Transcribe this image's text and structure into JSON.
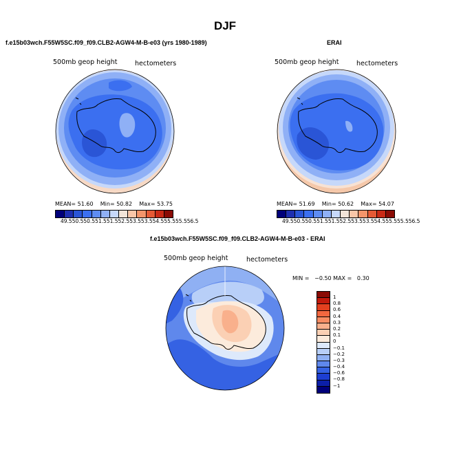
{
  "page": {
    "title": "DJF"
  },
  "panels": [
    {
      "title": "f.e15b03wch.F55W5SC.f09_f09.CLB2-AGW4-M-B-e03 (yrs 1980-1989)",
      "variable": "500mb geop height",
      "units": "hectometers",
      "stats": {
        "mean_label": "MEAN=",
        "mean": "51.60",
        "min_label": "Min=",
        "min": "50.82",
        "max_label": "Max=",
        "max": "53.75"
      }
    },
    {
      "title": "ERAI",
      "variable": "500mb geop height",
      "units": "hectometers",
      "stats": {
        "mean_label": "MEAN=",
        "mean": "51.69",
        "min_label": "Min=",
        "min": "50.62",
        "max_label": "Max=",
        "max": "54.07"
      }
    },
    {
      "title": "f.e15b03wch.F55W5SC.f09_f09.CLB2-AGW4-M-B-e03 - ERAI",
      "variable": "500mb geop height",
      "units": "hectometers",
      "minmax": "MIN =   −0.50 MAX =   0.30"
    }
  ],
  "colorbar_abs": {
    "labels": [
      "49.5",
      "50.5",
      "50.5",
      "51.5",
      "51.5",
      "52.5",
      "53.5",
      "53.5",
      "54.5",
      "55.5",
      "55.5",
      "56.5"
    ],
    "colors": [
      "#00007a",
      "#1e2fb0",
      "#2a55d6",
      "#3b6ff0",
      "#5e8cf2",
      "#8fb0f6",
      "#c6d8fa",
      "#f2e4d8",
      "#f9c6a8",
      "#f3956b",
      "#e55a35",
      "#c92a16",
      "#8a0b05"
    ]
  },
  "colorbar_diff": {
    "labels": [
      "1",
      "0.8",
      "0.6",
      "0.4",
      "0.3",
      "0.2",
      "0.1",
      "0",
      "−0.1",
      "−0.2",
      "−0.3",
      "−0.4",
      "−0.6",
      "−0.8",
      "−1"
    ],
    "colors": [
      "#8a0b05",
      "#c21a0c",
      "#e3401f",
      "#f2673f",
      "#f78c62",
      "#f9b08c",
      "#fbd0b4",
      "#fcebdc",
      "#dde9fb",
      "#b8cff8",
      "#8fb0f3",
      "#5f88ec",
      "#3562e3",
      "#1d3ed2",
      "#0b1fa8",
      "#00007a"
    ]
  }
}
